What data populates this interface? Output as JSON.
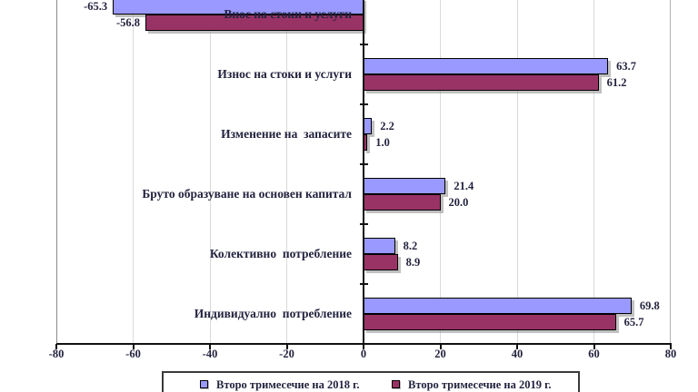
{
  "chart_data": {
    "type": "bar",
    "orientation": "horizontal",
    "title": "",
    "xlabel": "",
    "ylabel": "",
    "categories": [
      "Внос на стоки и услуги",
      "Износ на стоки и услуги",
      "Изменение на  запасите",
      "Бруто образуване на основен капитал",
      "Колективно  потребление",
      "Индивидуално  потребление"
    ],
    "series": [
      {
        "name": "Второ тримесечие на 2018 г.",
        "color": "#9999FF",
        "values": [
          -65.3,
          63.7,
          2.2,
          21.4,
          8.2,
          69.8
        ]
      },
      {
        "name": "Второ тримесечие на 2019 г.",
        "color": "#993366",
        "values": [
          -56.8,
          61.2,
          1.0,
          20.0,
          8.9,
          65.7
        ]
      }
    ],
    "xlim": [
      -80,
      80
    ],
    "x_ticks": [
      -80,
      -60,
      -40,
      -20,
      0,
      20,
      40,
      60,
      80
    ],
    "grid": true,
    "value_labels": true,
    "value_decimals": 1,
    "legend_position": "bottom"
  },
  "colors": {
    "bar_2018": "#9999FF",
    "bar_2019": "#993366",
    "bar_border": "#000000",
    "bar_shadow": "#8c8c8c",
    "text": "#23233f",
    "gridline": "#d9d9d9",
    "axis": "#111111",
    "legend_border": "#3a3a3a",
    "background": "#ffffff"
  }
}
